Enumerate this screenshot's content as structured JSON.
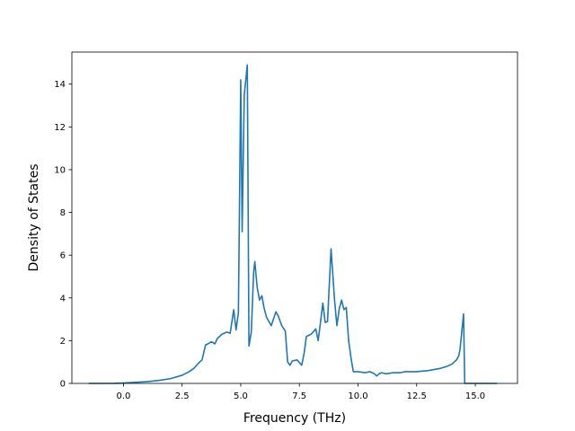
{
  "chart_data": {
    "type": "line",
    "title": "",
    "xlabel": "Frequency (THz)",
    "ylabel": "Density of States",
    "xlim": [
      -2.2,
      16.8
    ],
    "ylim": [
      0,
      15.5
    ],
    "xticks": [
      0.0,
      2.5,
      5.0,
      7.5,
      10.0,
      12.5,
      15.0
    ],
    "xtick_labels": [
      "0.0",
      "2.5",
      "5.0",
      "7.5",
      "10.0",
      "12.5",
      "15.0"
    ],
    "yticks": [
      0,
      2,
      4,
      6,
      8,
      10,
      12,
      14
    ],
    "ytick_labels": [
      "0",
      "2",
      "4",
      "6",
      "8",
      "10",
      "12",
      "14"
    ],
    "grid": false,
    "legend": "none",
    "color": "#1f77b4",
    "series": [
      {
        "x": [
          -1.45,
          -0.5,
          0.0,
          0.5,
          1.0,
          1.5,
          2.0,
          2.5,
          2.8,
          3.0,
          3.2,
          3.35,
          3.5,
          3.6,
          3.75,
          3.9,
          4.0,
          4.2,
          4.4,
          4.55,
          4.7,
          4.8,
          4.9,
          5.0,
          5.06,
          5.15,
          5.28,
          5.35,
          5.45,
          5.55,
          5.6,
          5.7,
          5.8,
          5.9,
          6.0,
          6.1,
          6.3,
          6.5,
          6.6,
          6.75,
          6.9,
          7.0,
          7.1,
          7.2,
          7.4,
          7.6,
          7.7,
          7.8,
          8.0,
          8.2,
          8.3,
          8.4,
          8.5,
          8.6,
          8.7,
          8.85,
          9.0,
          9.1,
          9.2,
          9.3,
          9.4,
          9.5,
          9.6,
          9.7,
          9.8,
          10.0,
          10.3,
          10.5,
          10.7,
          10.8,
          10.9,
          11.0,
          11.2,
          11.5,
          11.8,
          12.0,
          12.5,
          13.0,
          13.5,
          13.8,
          14.0,
          14.2,
          14.3,
          14.35,
          14.5,
          14.55,
          15.0,
          15.5,
          15.9
        ],
        "y": [
          0.0,
          0.0,
          0.02,
          0.05,
          0.08,
          0.14,
          0.22,
          0.38,
          0.55,
          0.7,
          0.95,
          1.1,
          1.8,
          1.85,
          1.95,
          1.85,
          2.1,
          2.3,
          2.4,
          2.35,
          3.45,
          2.5,
          3.3,
          14.2,
          7.1,
          13.5,
          14.9,
          1.75,
          2.4,
          5.2,
          5.7,
          4.5,
          3.9,
          4.1,
          3.5,
          3.1,
          2.7,
          3.35,
          3.15,
          2.7,
          2.45,
          1.0,
          0.85,
          1.05,
          1.1,
          0.85,
          1.4,
          2.2,
          2.3,
          2.55,
          2.0,
          2.85,
          3.75,
          2.85,
          2.9,
          6.3,
          3.9,
          2.7,
          3.5,
          3.9,
          3.45,
          3.55,
          2.0,
          1.2,
          0.55,
          0.55,
          0.5,
          0.55,
          0.45,
          0.35,
          0.45,
          0.5,
          0.45,
          0.5,
          0.5,
          0.55,
          0.55,
          0.6,
          0.7,
          0.8,
          0.9,
          1.1,
          1.3,
          1.6,
          3.25,
          0.0,
          0.0,
          0.0,
          0.0
        ]
      }
    ]
  }
}
